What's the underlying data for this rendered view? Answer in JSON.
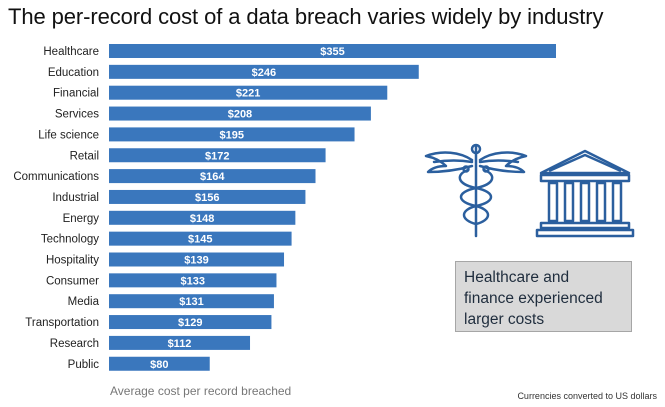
{
  "title": "The per-record cost of a data breach varies widely by industry",
  "chart_data": {
    "type": "bar",
    "orientation": "horizontal",
    "title": "The per-record cost of a data breach varies widely by industry",
    "xlabel": "Average cost per record breached",
    "ylabel": "",
    "categories": [
      "Healthcare",
      "Education",
      "Financial",
      "Services",
      "Life science",
      "Retail",
      "Communications",
      "Industrial",
      "Energy",
      "Technology",
      "Hospitality",
      "Consumer",
      "Media",
      "Transportation",
      "Research",
      "Public"
    ],
    "values": [
      355,
      246,
      221,
      208,
      195,
      172,
      164,
      156,
      148,
      145,
      139,
      133,
      131,
      129,
      112,
      80
    ],
    "value_labels": [
      "$355",
      "$246",
      "$221",
      "$208",
      "$195",
      "$172",
      "$164",
      "$156",
      "$148",
      "$145",
      "$139",
      "$133",
      "$131",
      "$129",
      "$112",
      "$80"
    ],
    "xlim": [
      0,
      355
    ],
    "grid": false,
    "bar_color": "#3a77bd"
  },
  "callout": {
    "line1": "Healthcare and",
    "line2": "finance experienced",
    "line3": "larger costs"
  },
  "footnote": "Currencies converted to US dollars",
  "icons": {
    "caduceus": "caduceus-icon",
    "bank": "bank-building-icon"
  },
  "colors": {
    "bar": "#3a77bd",
    "callout_bg": "#d9d9d9",
    "icon_stroke": "#2b5f9e"
  }
}
